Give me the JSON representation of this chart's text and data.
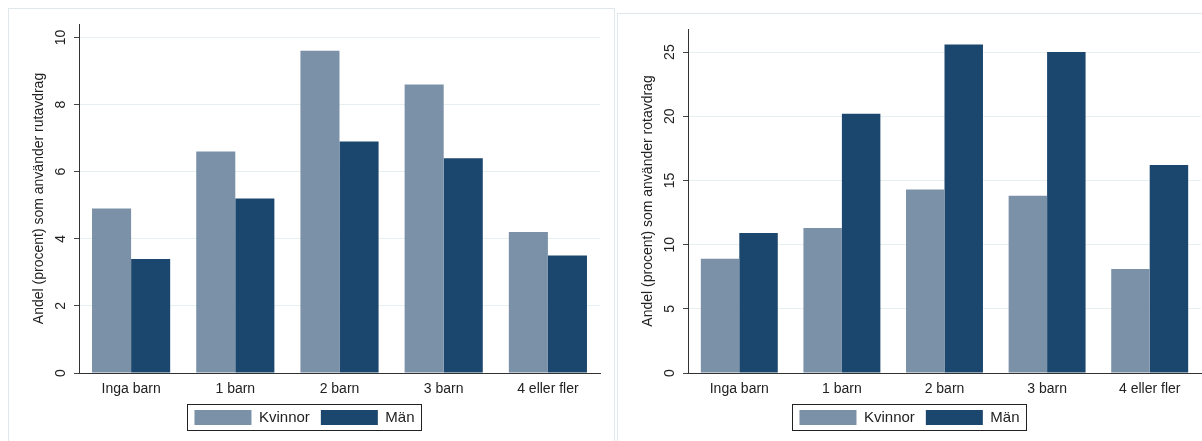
{
  "chart_data": [
    {
      "type": "bar",
      "categories": [
        "Inga barn",
        "1 barn",
        "2 barn",
        "3 barn",
        "4 eller fler"
      ],
      "series": [
        {
          "name": "Kvinnor",
          "color": "#7b91a8",
          "values": [
            4.9,
            6.6,
            9.6,
            8.6,
            4.2
          ]
        },
        {
          "name": "Män",
          "color": "#1b466d",
          "values": [
            3.4,
            5.2,
            6.9,
            6.4,
            3.5
          ]
        }
      ],
      "ylabel": "Andel (procent) som använder rutavdrag",
      "ylim": [
        0,
        10.4
      ],
      "yticks": [
        0,
        2,
        4,
        6,
        8,
        10
      ],
      "grid": "y",
      "legend": "bottom"
    },
    {
      "type": "bar",
      "categories": [
        "Inga barn",
        "1 barn",
        "2 barn",
        "3 barn",
        "4 eller fler"
      ],
      "series": [
        {
          "name": "Kvinnor",
          "color": "#7b91a8",
          "values": [
            8.9,
            11.3,
            14.3,
            13.8,
            8.1
          ]
        },
        {
          "name": "Män",
          "color": "#1b466d",
          "values": [
            10.9,
            20.2,
            25.6,
            25.0,
            16.2
          ]
        }
      ],
      "ylabel": "Andel (procent) som använder rotavdrag",
      "ylim": [
        0,
        26.8
      ],
      "yticks": [
        0,
        5,
        10,
        15,
        20,
        25
      ],
      "grid": "y",
      "legend": "bottom"
    }
  ]
}
